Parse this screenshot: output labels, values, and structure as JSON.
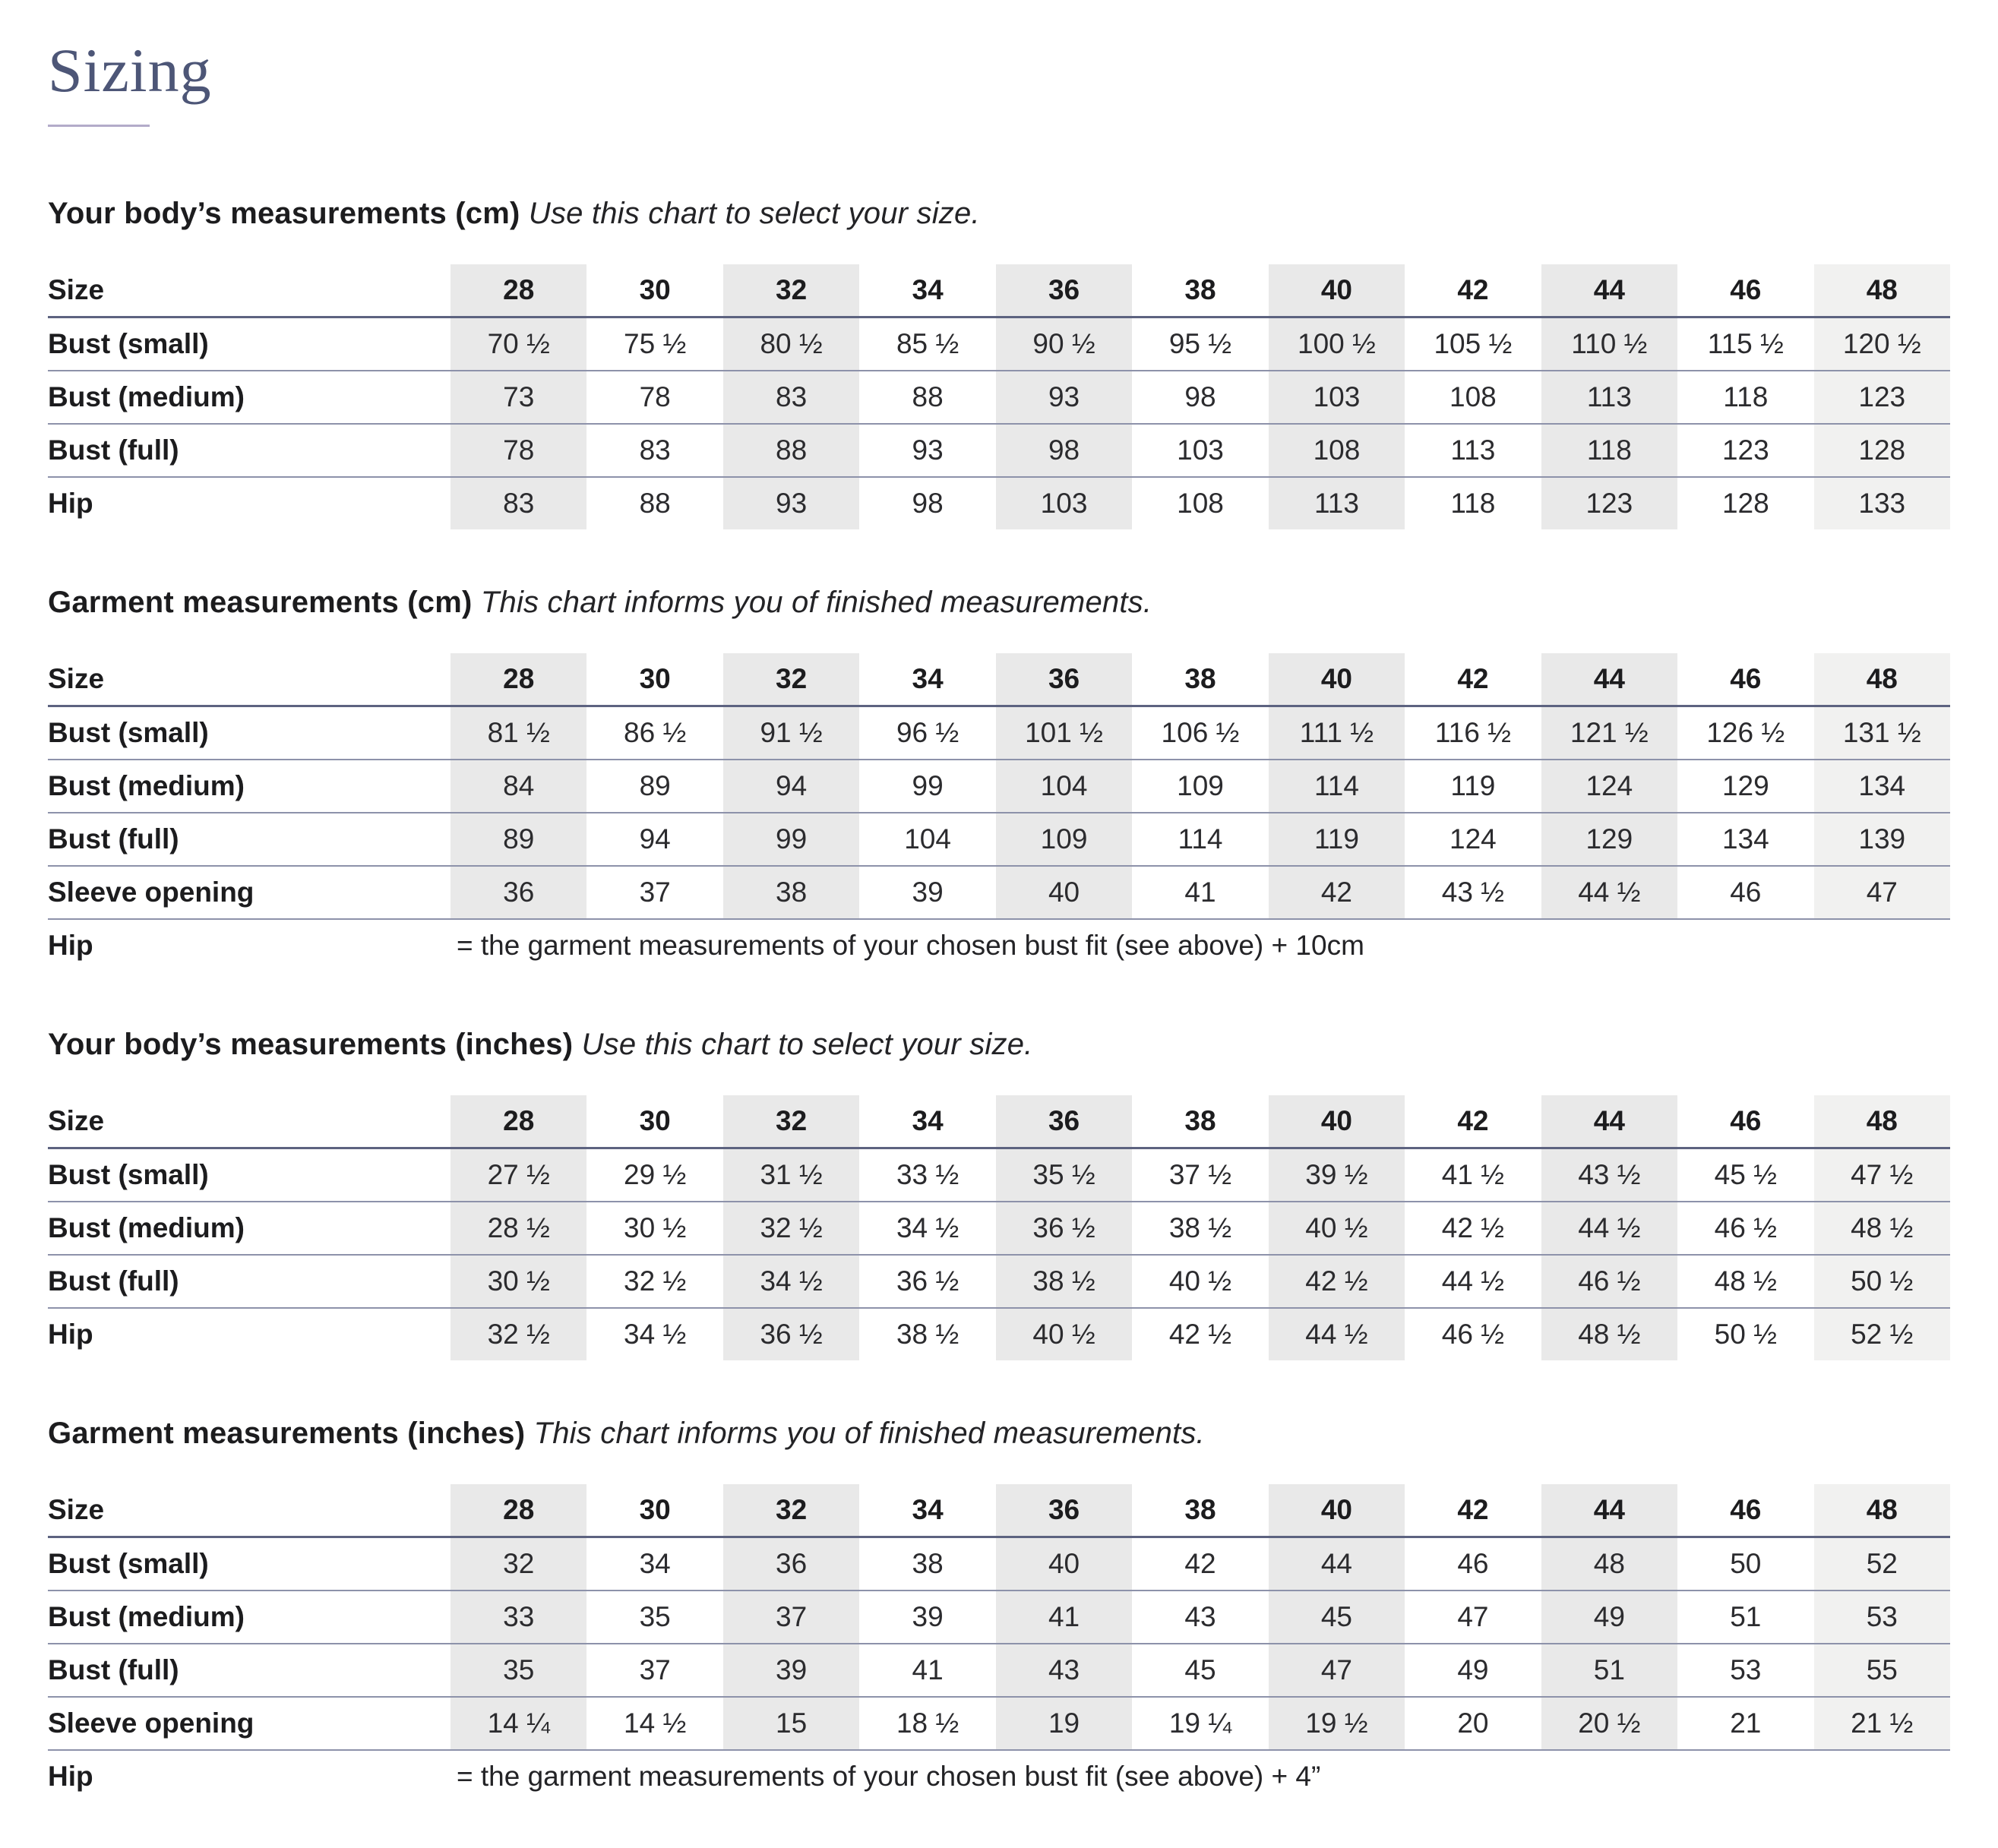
{
  "page": {
    "title": "Sizing"
  },
  "colors": {
    "title": "#4d5677",
    "title_underline": "#b3abc9",
    "heading_text": "#1c1c1e",
    "body_text": "#2b2b2e",
    "rule_dark": "#5d6380",
    "rule_light": "#8d92aa",
    "column_shade": "#e9e9e9",
    "column_shade_light": "#f1f1f0"
  },
  "tables": [
    {
      "id": "body-cm",
      "heading": "Your body’s measurements (cm)",
      "subtitle": "Use this chart to select your size.",
      "size_label": "Size",
      "sizes": [
        "28",
        "30",
        "32",
        "34",
        "36",
        "38",
        "40",
        "42",
        "44",
        "46",
        "48"
      ],
      "rows": [
        {
          "label": "Bust (small)",
          "values": [
            "70 ½",
            "75 ½",
            "80 ½",
            "85 ½",
            "90 ½",
            "95 ½",
            "100 ½",
            "105 ½",
            "110 ½",
            "115 ½",
            "120 ½"
          ]
        },
        {
          "label": "Bust (medium)",
          "values": [
            "73",
            "78",
            "83",
            "88",
            "93",
            "98",
            "103",
            "108",
            "113",
            "118",
            "123"
          ]
        },
        {
          "label": "Bust (full)",
          "values": [
            "78",
            "83",
            "88",
            "93",
            "98",
            "103",
            "108",
            "113",
            "118",
            "123",
            "128"
          ]
        },
        {
          "label": "Hip",
          "values": [
            "83",
            "88",
            "93",
            "98",
            "103",
            "108",
            "113",
            "118",
            "123",
            "128",
            "133"
          ]
        }
      ],
      "note_row": null
    },
    {
      "id": "garment-cm",
      "heading": "Garment measurements (cm)",
      "subtitle": "This chart informs you of finished measurements.",
      "size_label": "Size",
      "sizes": [
        "28",
        "30",
        "32",
        "34",
        "36",
        "38",
        "40",
        "42",
        "44",
        "46",
        "48"
      ],
      "rows": [
        {
          "label": "Bust (small)",
          "values": [
            "81 ½",
            "86 ½",
            "91 ½",
            "96 ½",
            "101 ½",
            "106 ½",
            "111 ½",
            "116 ½",
            "121 ½",
            "126 ½",
            "131 ½"
          ]
        },
        {
          "label": "Bust (medium)",
          "values": [
            "84",
            "89",
            "94",
            "99",
            "104",
            "109",
            "114",
            "119",
            "124",
            "129",
            "134"
          ]
        },
        {
          "label": "Bust (full)",
          "values": [
            "89",
            "94",
            "99",
            "104",
            "109",
            "114",
            "119",
            "124",
            "129",
            "134",
            "139"
          ]
        },
        {
          "label": "Sleeve opening",
          "values": [
            "36",
            "37",
            "38",
            "39",
            "40",
            "41",
            "42",
            "43 ½",
            "44 ½",
            "46",
            "47"
          ]
        }
      ],
      "note_row": {
        "label": "Hip",
        "text": "= the garment measurements of your chosen bust fit (see above) + 10cm"
      }
    },
    {
      "id": "body-inches",
      "heading": "Your body’s measurements (inches)",
      "subtitle": "Use this chart to select your size.",
      "size_label": "Size",
      "sizes": [
        "28",
        "30",
        "32",
        "34",
        "36",
        "38",
        "40",
        "42",
        "44",
        "46",
        "48"
      ],
      "rows": [
        {
          "label": "Bust (small)",
          "values": [
            "27 ½",
            "29 ½",
            "31 ½",
            "33 ½",
            "35 ½",
            "37 ½",
            "39 ½",
            "41 ½",
            "43 ½",
            "45 ½",
            "47 ½"
          ]
        },
        {
          "label": "Bust (medium)",
          "values": [
            "28 ½",
            "30 ½",
            "32 ½",
            "34 ½",
            "36 ½",
            "38 ½",
            "40 ½",
            "42 ½",
            "44 ½",
            "46 ½",
            "48 ½"
          ]
        },
        {
          "label": "Bust (full)",
          "values": [
            "30 ½",
            "32 ½",
            "34 ½",
            "36 ½",
            "38 ½",
            "40 ½",
            "42 ½",
            "44 ½",
            "46 ½",
            "48 ½",
            "50 ½"
          ]
        },
        {
          "label": "Hip",
          "values": [
            "32 ½",
            "34 ½",
            "36 ½",
            "38 ½",
            "40 ½",
            "42 ½",
            "44 ½",
            "46 ½",
            "48 ½",
            "50 ½",
            "52 ½"
          ]
        }
      ],
      "note_row": null
    },
    {
      "id": "garment-inches",
      "heading": "Garment measurements (inches)",
      "subtitle": "This chart informs you of finished measurements.",
      "size_label": "Size",
      "sizes": [
        "28",
        "30",
        "32",
        "34",
        "36",
        "38",
        "40",
        "42",
        "44",
        "46",
        "48"
      ],
      "rows": [
        {
          "label": "Bust (small)",
          "values": [
            "32",
            "34",
            "36",
            "38",
            "40",
            "42",
            "44",
            "46",
            "48",
            "50",
            "52"
          ]
        },
        {
          "label": "Bust (medium)",
          "values": [
            "33",
            "35",
            "37",
            "39",
            "41",
            "43",
            "45",
            "47",
            "49",
            "51",
            "53"
          ]
        },
        {
          "label": "Bust (full)",
          "values": [
            "35",
            "37",
            "39",
            "41",
            "43",
            "45",
            "47",
            "49",
            "51",
            "53",
            "55"
          ]
        },
        {
          "label": "Sleeve opening",
          "values": [
            "14 ¼",
            "14 ½",
            "15",
            "18 ½",
            "19",
            "19 ¼",
            "19 ½",
            "20",
            "20 ½",
            "21",
            "21 ½"
          ]
        }
      ],
      "note_row": {
        "label": "Hip",
        "text": "= the garment measurements of your chosen bust fit (see above) + 4”"
      }
    }
  ]
}
